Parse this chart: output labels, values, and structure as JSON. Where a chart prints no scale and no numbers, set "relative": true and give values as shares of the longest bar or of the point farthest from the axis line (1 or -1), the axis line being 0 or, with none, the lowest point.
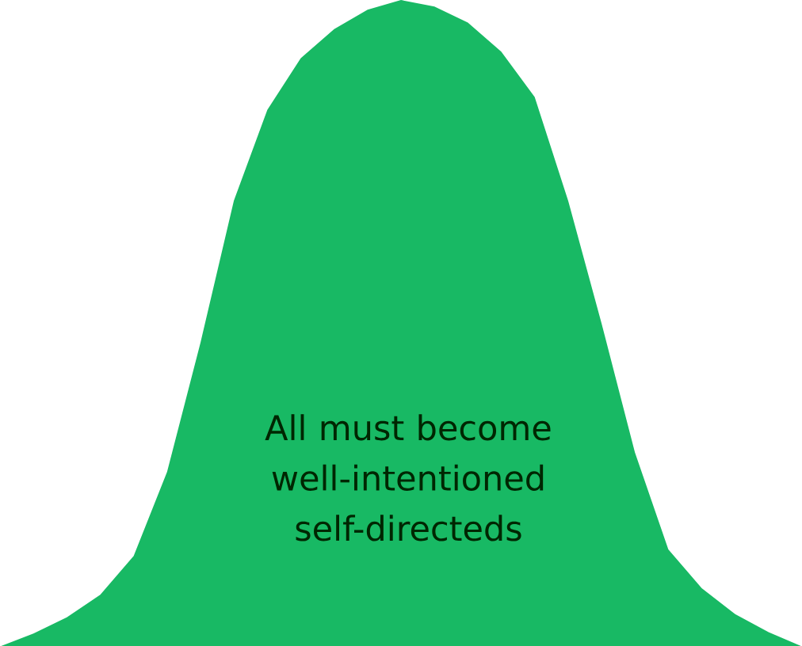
{
  "chart_data": {
    "type": "area",
    "relative": true,
    "color": "#18b964",
    "categories": [
      null,
      null,
      null,
      null,
      null,
      null,
      null,
      null,
      null,
      null,
      null,
      null,
      null,
      null,
      null,
      null,
      null,
      null,
      null,
      null,
      null,
      null,
      null,
      null,
      null
    ],
    "values": [
      0,
      0.02,
      0.045,
      0.08,
      0.14,
      0.27,
      0.47,
      0.69,
      0.83,
      0.91,
      0.955,
      0.985,
      1.0,
      0.99,
      0.965,
      0.92,
      0.85,
      0.69,
      0.5,
      0.3,
      0.15,
      0.09,
      0.05,
      0.022,
      0
    ],
    "annotations": [
      "All must become well-intentioned self-directeds"
    ]
  }
}
